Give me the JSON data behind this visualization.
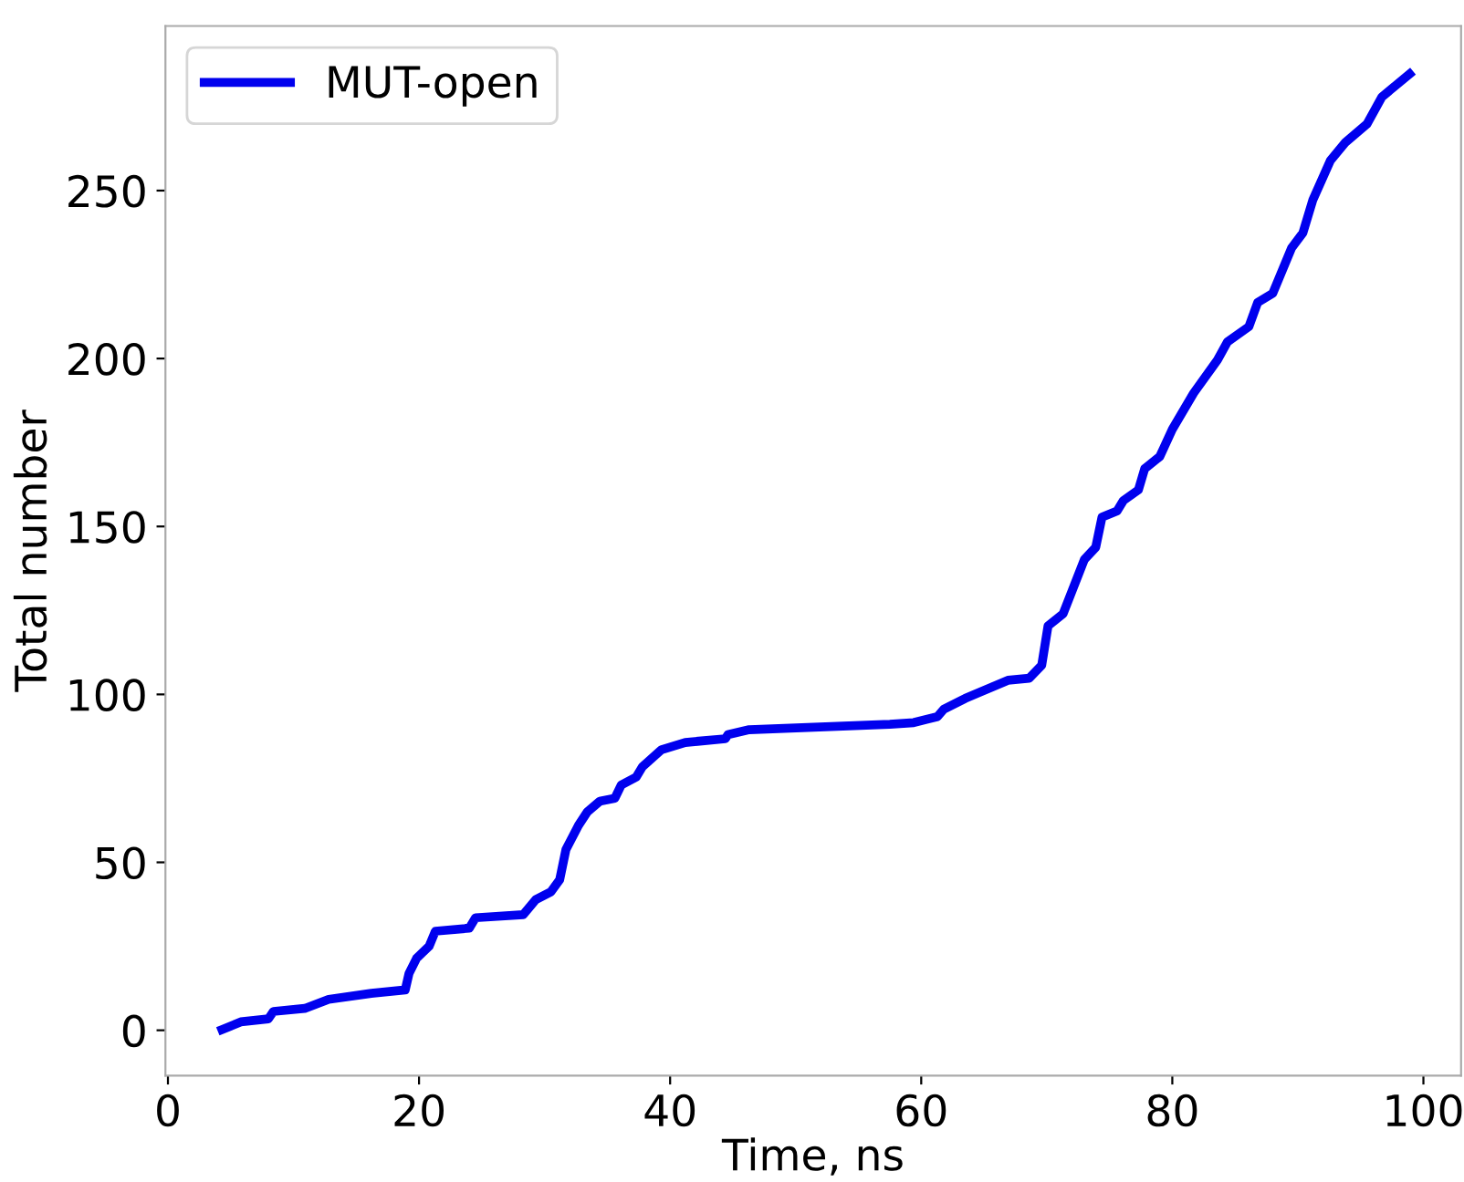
{
  "chart_data": {
    "type": "line",
    "xlabel": "Time, ns",
    "ylabel": "Total number",
    "xlim": [
      -0.2,
      103
    ],
    "ylim": [
      -13.5,
      299
    ],
    "xticks": [
      0,
      20,
      40,
      60,
      80,
      100
    ],
    "yticks": [
      0,
      50,
      100,
      150,
      200,
      250
    ],
    "legend": "top left",
    "grid": false,
    "series": [
      {
        "name": "MUT-open",
        "color": "#0000ee",
        "x": [
          4.3,
          5.8,
          8.0,
          8.4,
          10.9,
          12.8,
          16.2,
          18.9,
          19.2,
          19.8,
          20.8,
          21.3,
          24.0,
          24.5,
          28.3,
          29.3,
          30.5,
          31.2,
          31.7,
          32.7,
          33.4,
          34.4,
          35.6,
          36.1,
          37.3,
          37.8,
          39.3,
          41.2,
          44.4,
          44.6,
          46.3,
          57.5,
          59.4,
          61.3,
          61.8,
          63.5,
          66.9,
          68.6,
          69.6,
          70.1,
          71.3,
          73.0,
          73.9,
          74.4,
          75.6,
          76.1,
          77.3,
          77.8,
          79.0,
          80.0,
          81.7,
          83.6,
          84.4,
          86.1,
          86.8,
          88.0,
          89.5,
          90.4,
          91.2,
          92.6,
          93.8,
          95.5,
          96.7,
          98.9
        ],
        "values": [
          0.2,
          2.5,
          3.4,
          5.6,
          6.5,
          9.2,
          11,
          12,
          16.9,
          21.4,
          25,
          29.5,
          30.4,
          33.5,
          34.4,
          38.9,
          41.2,
          44.8,
          53.8,
          61,
          65,
          68.2,
          69.1,
          73,
          75.4,
          78.5,
          83.5,
          85.7,
          86.8,
          88,
          89.5,
          91.1,
          91.6,
          93.4,
          95.6,
          98.8,
          104.2,
          104.8,
          108.7,
          120.4,
          124,
          140.2,
          143.8,
          152.8,
          154.6,
          157.7,
          160.9,
          167.2,
          170.8,
          178.9,
          189.7,
          199.6,
          205,
          209.5,
          216.7,
          219.4,
          232.9,
          237.4,
          247.3,
          259,
          264.4,
          269.8,
          277.9,
          284.7
        ]
      }
    ]
  }
}
